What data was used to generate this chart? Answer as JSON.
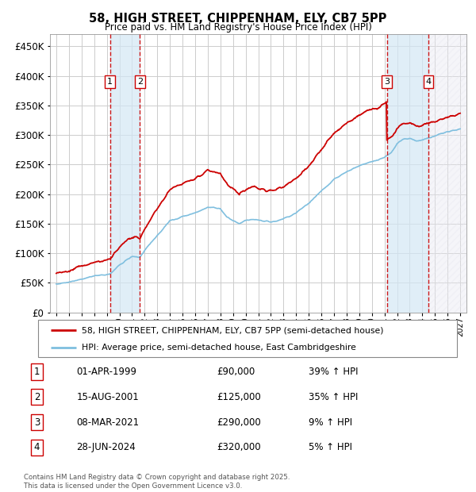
{
  "title": "58, HIGH STREET, CHIPPENHAM, ELY, CB7 5PP",
  "subtitle": "Price paid vs. HM Land Registry's House Price Index (HPI)",
  "legend_line1": "58, HIGH STREET, CHIPPENHAM, ELY, CB7 5PP (semi-detached house)",
  "legend_line2": "HPI: Average price, semi-detached house, East Cambridgeshire",
  "footer": "Contains HM Land Registry data © Crown copyright and database right 2025.\nThis data is licensed under the Open Government Licence v3.0.",
  "transactions": [
    {
      "num": 1,
      "date": "01-APR-1999",
      "price": 90000,
      "pct": "39%",
      "dir": "↑"
    },
    {
      "num": 2,
      "date": "15-AUG-2001",
      "price": 125000,
      "pct": "35%",
      "dir": "↑"
    },
    {
      "num": 3,
      "date": "08-MAR-2021",
      "price": 290000,
      "pct": "9%",
      "dir": "↑"
    },
    {
      "num": 4,
      "date": "28-JUN-2024",
      "price": 320000,
      "pct": "5%",
      "dir": "↑"
    }
  ],
  "transaction_dates_decimal": [
    1999.25,
    2001.625,
    2021.19,
    2024.49
  ],
  "hpi_color": "#7fbfdf",
  "price_color": "#cc0000",
  "grid_color": "#cccccc",
  "ylim": [
    0,
    470000
  ],
  "yticks": [
    0,
    50000,
    100000,
    150000,
    200000,
    250000,
    300000,
    350000,
    400000,
    450000
  ],
  "xlim_start": 1994.5,
  "xlim_end": 2027.5,
  "xticks": [
    1995,
    1996,
    1997,
    1998,
    1999,
    2000,
    2001,
    2002,
    2003,
    2004,
    2005,
    2006,
    2007,
    2008,
    2009,
    2010,
    2011,
    2012,
    2013,
    2014,
    2015,
    2016,
    2017,
    2018,
    2019,
    2020,
    2021,
    2022,
    2023,
    2024,
    2025,
    2026,
    2027
  ]
}
